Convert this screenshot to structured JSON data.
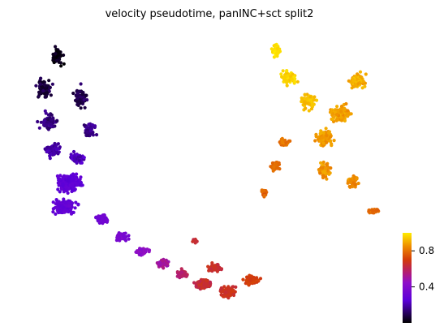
{
  "chart_data": {
    "type": "scatter",
    "title": "velocity pseudotime, panINC+sct split2",
    "xlabel": "",
    "ylabel": "",
    "axes_visible": false,
    "grid": false,
    "colormap": "gnuplot",
    "color_value_range": [
      0.0,
      1.0
    ],
    "colorbar": {
      "placement": "right",
      "ticks": [
        0.4,
        0.8
      ],
      "tick_labels": [
        "0.4",
        "0.8"
      ]
    },
    "approx_point_count": 2600,
    "clusters": [
      {
        "region": "upper-left arm",
        "color_value_range": [
          0.0,
          0.22
        ]
      },
      {
        "region": "left blob",
        "color_value_range": [
          0.22,
          0.34
        ]
      },
      {
        "region": "lower-left tail",
        "color_value_range": [
          0.34,
          0.55
        ]
      },
      {
        "region": "bottom center",
        "color_value_range": [
          0.55,
          0.72
        ]
      },
      {
        "region": "right lower arms",
        "color_value_range": [
          0.72,
          0.85
        ]
      },
      {
        "region": "right cluster",
        "color_value_range": [
          0.85,
          1.0
        ]
      }
    ]
  }
}
